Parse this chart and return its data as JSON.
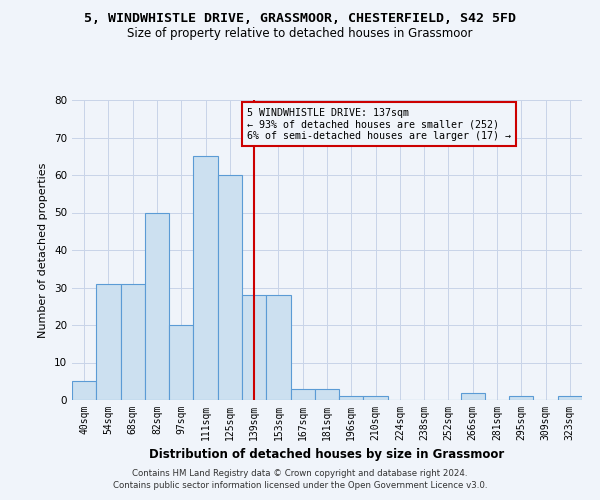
{
  "title": "5, WINDWHISTLE DRIVE, GRASSMOOR, CHESTERFIELD, S42 5FD",
  "subtitle": "Size of property relative to detached houses in Grassmoor",
  "xlabel": "Distribution of detached houses by size in Grassmoor",
  "ylabel": "Number of detached properties",
  "bar_labels": [
    "40sqm",
    "54sqm",
    "68sqm",
    "82sqm",
    "97sqm",
    "111sqm",
    "125sqm",
    "139sqm",
    "153sqm",
    "167sqm",
    "181sqm",
    "196sqm",
    "210sqm",
    "224sqm",
    "238sqm",
    "252sqm",
    "266sqm",
    "281sqm",
    "295sqm",
    "309sqm",
    "323sqm"
  ],
  "bar_values": [
    5,
    31,
    31,
    50,
    20,
    65,
    60,
    28,
    28,
    3,
    3,
    1,
    1,
    0,
    0,
    0,
    2,
    0,
    1,
    0,
    1
  ],
  "bar_color": "#cce0f0",
  "bar_edge_color": "#5b9bd5",
  "highlight_index": 7,
  "highlight_line_color": "#cc0000",
  "annotation_box_color": "#cc0000",
  "annotation_text": "5 WINDWHISTLE DRIVE: 137sqm\n← 93% of detached houses are smaller (252)\n6% of semi-detached houses are larger (17) →",
  "ylim": [
    0,
    80
  ],
  "yticks": [
    0,
    10,
    20,
    30,
    40,
    50,
    60,
    70,
    80
  ],
  "footer_line1": "Contains HM Land Registry data © Crown copyright and database right 2024.",
  "footer_line2": "Contains public sector information licensed under the Open Government Licence v3.0.",
  "background_color": "#f0f4fa",
  "grid_color": "#c8d4e8"
}
